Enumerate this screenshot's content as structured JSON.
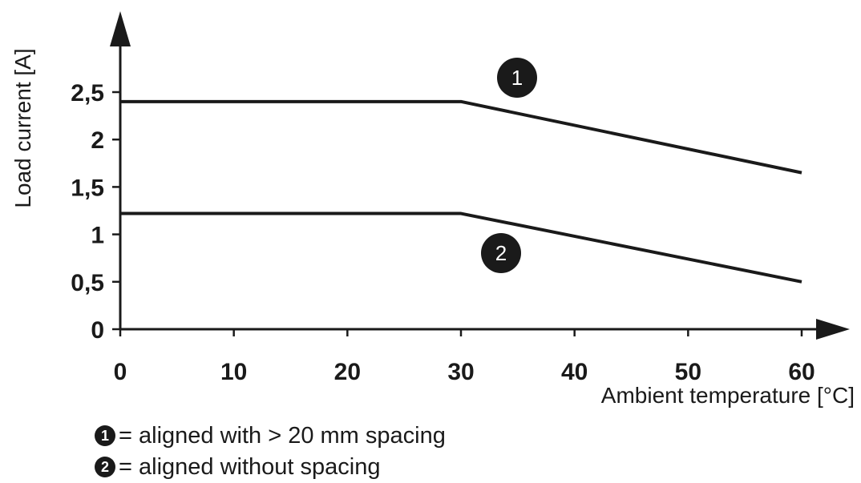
{
  "chart_data": {
    "type": "line",
    "xlabel": "Ambient temperature [°C]",
    "ylabel": "Load current [A]",
    "xlim": [
      0,
      60
    ],
    "ylim": [
      0,
      2.5
    ],
    "x_ticks": [
      "0",
      "10",
      "20",
      "30",
      "40",
      "50",
      "60"
    ],
    "y_ticks": [
      "0",
      "0,5",
      "1",
      "1,5",
      "2",
      "2,5"
    ],
    "series": [
      {
        "marker": "1",
        "x": [
          0,
          30,
          60
        ],
        "y": [
          2.4,
          2.4,
          1.65
        ]
      },
      {
        "marker": "2",
        "x": [
          0,
          30,
          60
        ],
        "y": [
          1.22,
          1.22,
          0.5
        ]
      }
    ],
    "grid": false
  },
  "legend": [
    {
      "marker": "1",
      "text": "= aligned with > 20 mm spacing"
    },
    {
      "marker": "2",
      "text": "= aligned without spacing"
    }
  ]
}
